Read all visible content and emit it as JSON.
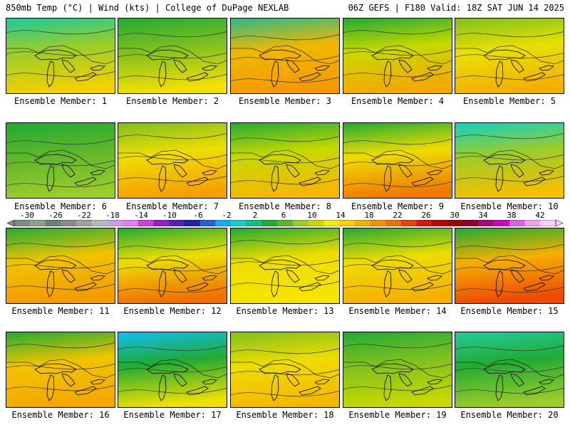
{
  "header": {
    "left": "850mb Temp (°C) | Wind (kts) | College of DuPage NEXLAB",
    "right": "06Z GEFS | F180 Valid: 18Z SAT JUN 14 2025"
  },
  "members": [
    {
      "label": "Ensemble Member: 1",
      "temp_top": "#1cc99b",
      "temp_mid": "#9bcc2a",
      "temp_bot": "#f4d000"
    },
    {
      "label": "Ensemble Member: 2",
      "temp_top": "#22aa33",
      "temp_mid": "#7fc01f",
      "temp_bot": "#f6e000"
    },
    {
      "label": "Ensemble Member: 3",
      "temp_top": "#2bb88a",
      "temp_mid": "#f0b800",
      "temp_bot": "#f59a00"
    },
    {
      "label": "Ensemble Member: 4",
      "temp_top": "#22aa33",
      "temp_mid": "#c8d800",
      "temp_bot": "#f5a800"
    },
    {
      "label": "Ensemble Member: 5",
      "temp_top": "#7fc01f",
      "temp_mid": "#e8e000",
      "temp_bot": "#f4b000"
    },
    {
      "label": "Ensemble Member: 6",
      "temp_top": "#22aa33",
      "temp_mid": "#5cb52a",
      "temp_bot": "#9bcc2a"
    },
    {
      "label": "Ensemble Member: 7",
      "temp_top": "#7fc01f",
      "temp_mid": "#eedd00",
      "temp_bot": "#f5a000"
    },
    {
      "label": "Ensemble Member: 8",
      "temp_top": "#22aa33",
      "temp_mid": "#c8d800",
      "temp_bot": "#f5b800"
    },
    {
      "label": "Ensemble Member: 9",
      "temp_top": "#22aa33",
      "temp_mid": "#eedd00",
      "temp_bot": "#f07a00"
    },
    {
      "label": "Ensemble Member: 10",
      "temp_top": "#10d2c0",
      "temp_mid": "#9bcc2a",
      "temp_bot": "#f4c000"
    },
    {
      "label": "Ensemble Member: 11",
      "temp_top": "#22aa33",
      "temp_mid": "#f0c400",
      "temp_bot": "#f59a00"
    },
    {
      "label": "Ensemble Member: 12",
      "temp_top": "#22aa33",
      "temp_mid": "#eedd00",
      "temp_bot": "#f07000"
    },
    {
      "label": "Ensemble Member: 13",
      "temp_top": "#22aa33",
      "temp_mid": "#eedd00",
      "temp_bot": "#f6e400"
    },
    {
      "label": "Ensemble Member: 14",
      "temp_top": "#22aa33",
      "temp_mid": "#eedd00",
      "temp_bot": "#f5b000"
    },
    {
      "label": "Ensemble Member: 15",
      "temp_top": "#22aa33",
      "temp_mid": "#f5b000",
      "temp_bot": "#ee4a00"
    },
    {
      "label": "Ensemble Member: 16",
      "temp_top": "#22aa33",
      "temp_mid": "#f0c400",
      "temp_bot": "#f5a800"
    },
    {
      "label": "Ensemble Member: 17",
      "temp_top": "#10bdf0",
      "temp_mid": "#22aa33",
      "temp_bot": "#f0e000"
    },
    {
      "label": "Ensemble Member: 18",
      "temp_top": "#7fc01f",
      "temp_mid": "#eedd00",
      "temp_bot": "#f5b800"
    },
    {
      "label": "Ensemble Member: 19",
      "temp_top": "#22aa33",
      "temp_mid": "#7fc01f",
      "temp_bot": "#c8d800"
    },
    {
      "label": "Ensemble Member: 20",
      "temp_top": "#22cc99",
      "temp_mid": "#22aa33",
      "temp_bot": "#9bcc2a"
    }
  ],
  "colorbar": {
    "labels": [
      "-30",
      "-26",
      "-22",
      "-18",
      "-14",
      "-10",
      "-6",
      "-2",
      "2",
      "6",
      "10",
      "14",
      "18",
      "22",
      "26",
      "30",
      "34",
      "38",
      "42"
    ],
    "colors": [
      "#7f8f7f",
      "#8f9f8f",
      "#6f7f6f",
      "#8a8a8a",
      "#a0a0a0",
      "#b8b8b8",
      "#c8a0e0",
      "#e080f0",
      "#d040e0",
      "#9020d0",
      "#5020c0",
      "#2020b0",
      "#2060e0",
      "#10b0f0",
      "#10d2c0",
      "#10c080",
      "#22aa33",
      "#5cb52a",
      "#9bcc2a",
      "#c8d800",
      "#eeee00",
      "#f6d000",
      "#f5b000",
      "#f59000",
      "#f07000",
      "#ee4000",
      "#e01010",
      "#c00000",
      "#a00000",
      "#900030",
      "#b00080",
      "#d000c0",
      "#e060e0",
      "#f0a0f0",
      "#f8d0f8"
    ]
  }
}
